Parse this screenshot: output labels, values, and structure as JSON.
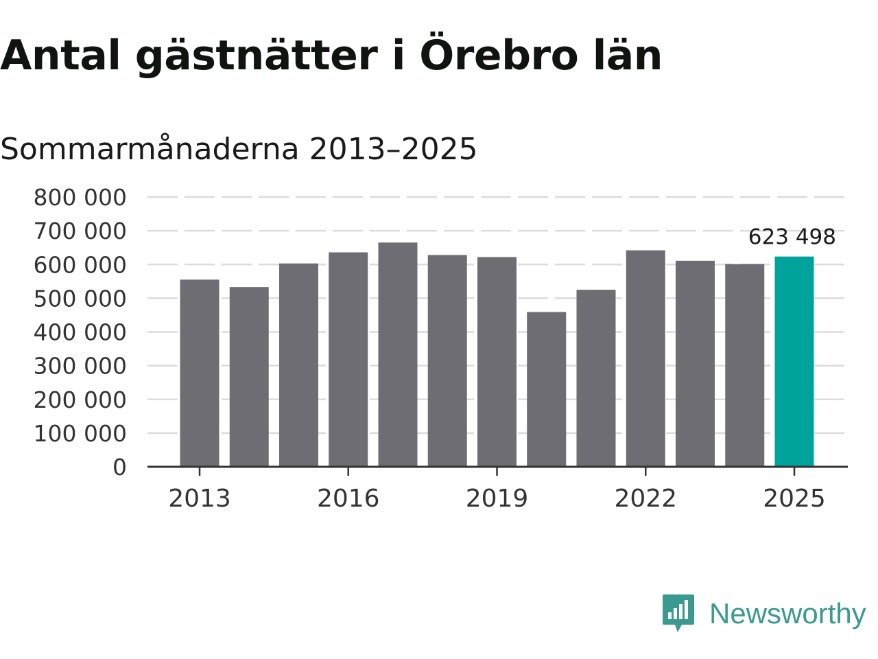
{
  "title": "Antal gästnätter i Örebro län",
  "subtitle": "Sommarmånaderna 2013–2025",
  "brand": {
    "name": "Newsworthy",
    "color": "#3a9a90",
    "icon": "newsworthy-logo-icon"
  },
  "chart_data": {
    "type": "bar",
    "title": "Antal gästnätter i Örebro län",
    "subtitle": "Sommarmånaderna 2013–2025",
    "categories": [
      "2013",
      "2014",
      "2015",
      "2016",
      "2017",
      "2018",
      "2019",
      "2020",
      "2021",
      "2022",
      "2023",
      "2024",
      "2025"
    ],
    "values": [
      555000,
      533000,
      603000,
      636000,
      665000,
      628000,
      622000,
      459000,
      525000,
      642000,
      611000,
      601000,
      623498
    ],
    "ylim": [
      0,
      800000
    ],
    "yticks": [
      0,
      100000,
      200000,
      300000,
      400000,
      500000,
      600000,
      700000,
      800000
    ],
    "ytick_labels": [
      "0",
      "100 000",
      "200 000",
      "300 000",
      "400 000",
      "500 000",
      "600 000",
      "700 000",
      "800 000"
    ],
    "xtick_labels": [
      "2013",
      "2016",
      "2019",
      "2022",
      "2025"
    ],
    "grid": true,
    "bar_color": "#6e6d73",
    "highlight_color": "#00a39b",
    "highlight_category": "2025",
    "data_labels": [
      {
        "category": "2025",
        "text": "623 498"
      }
    ],
    "xlabel": "",
    "ylabel": ""
  }
}
